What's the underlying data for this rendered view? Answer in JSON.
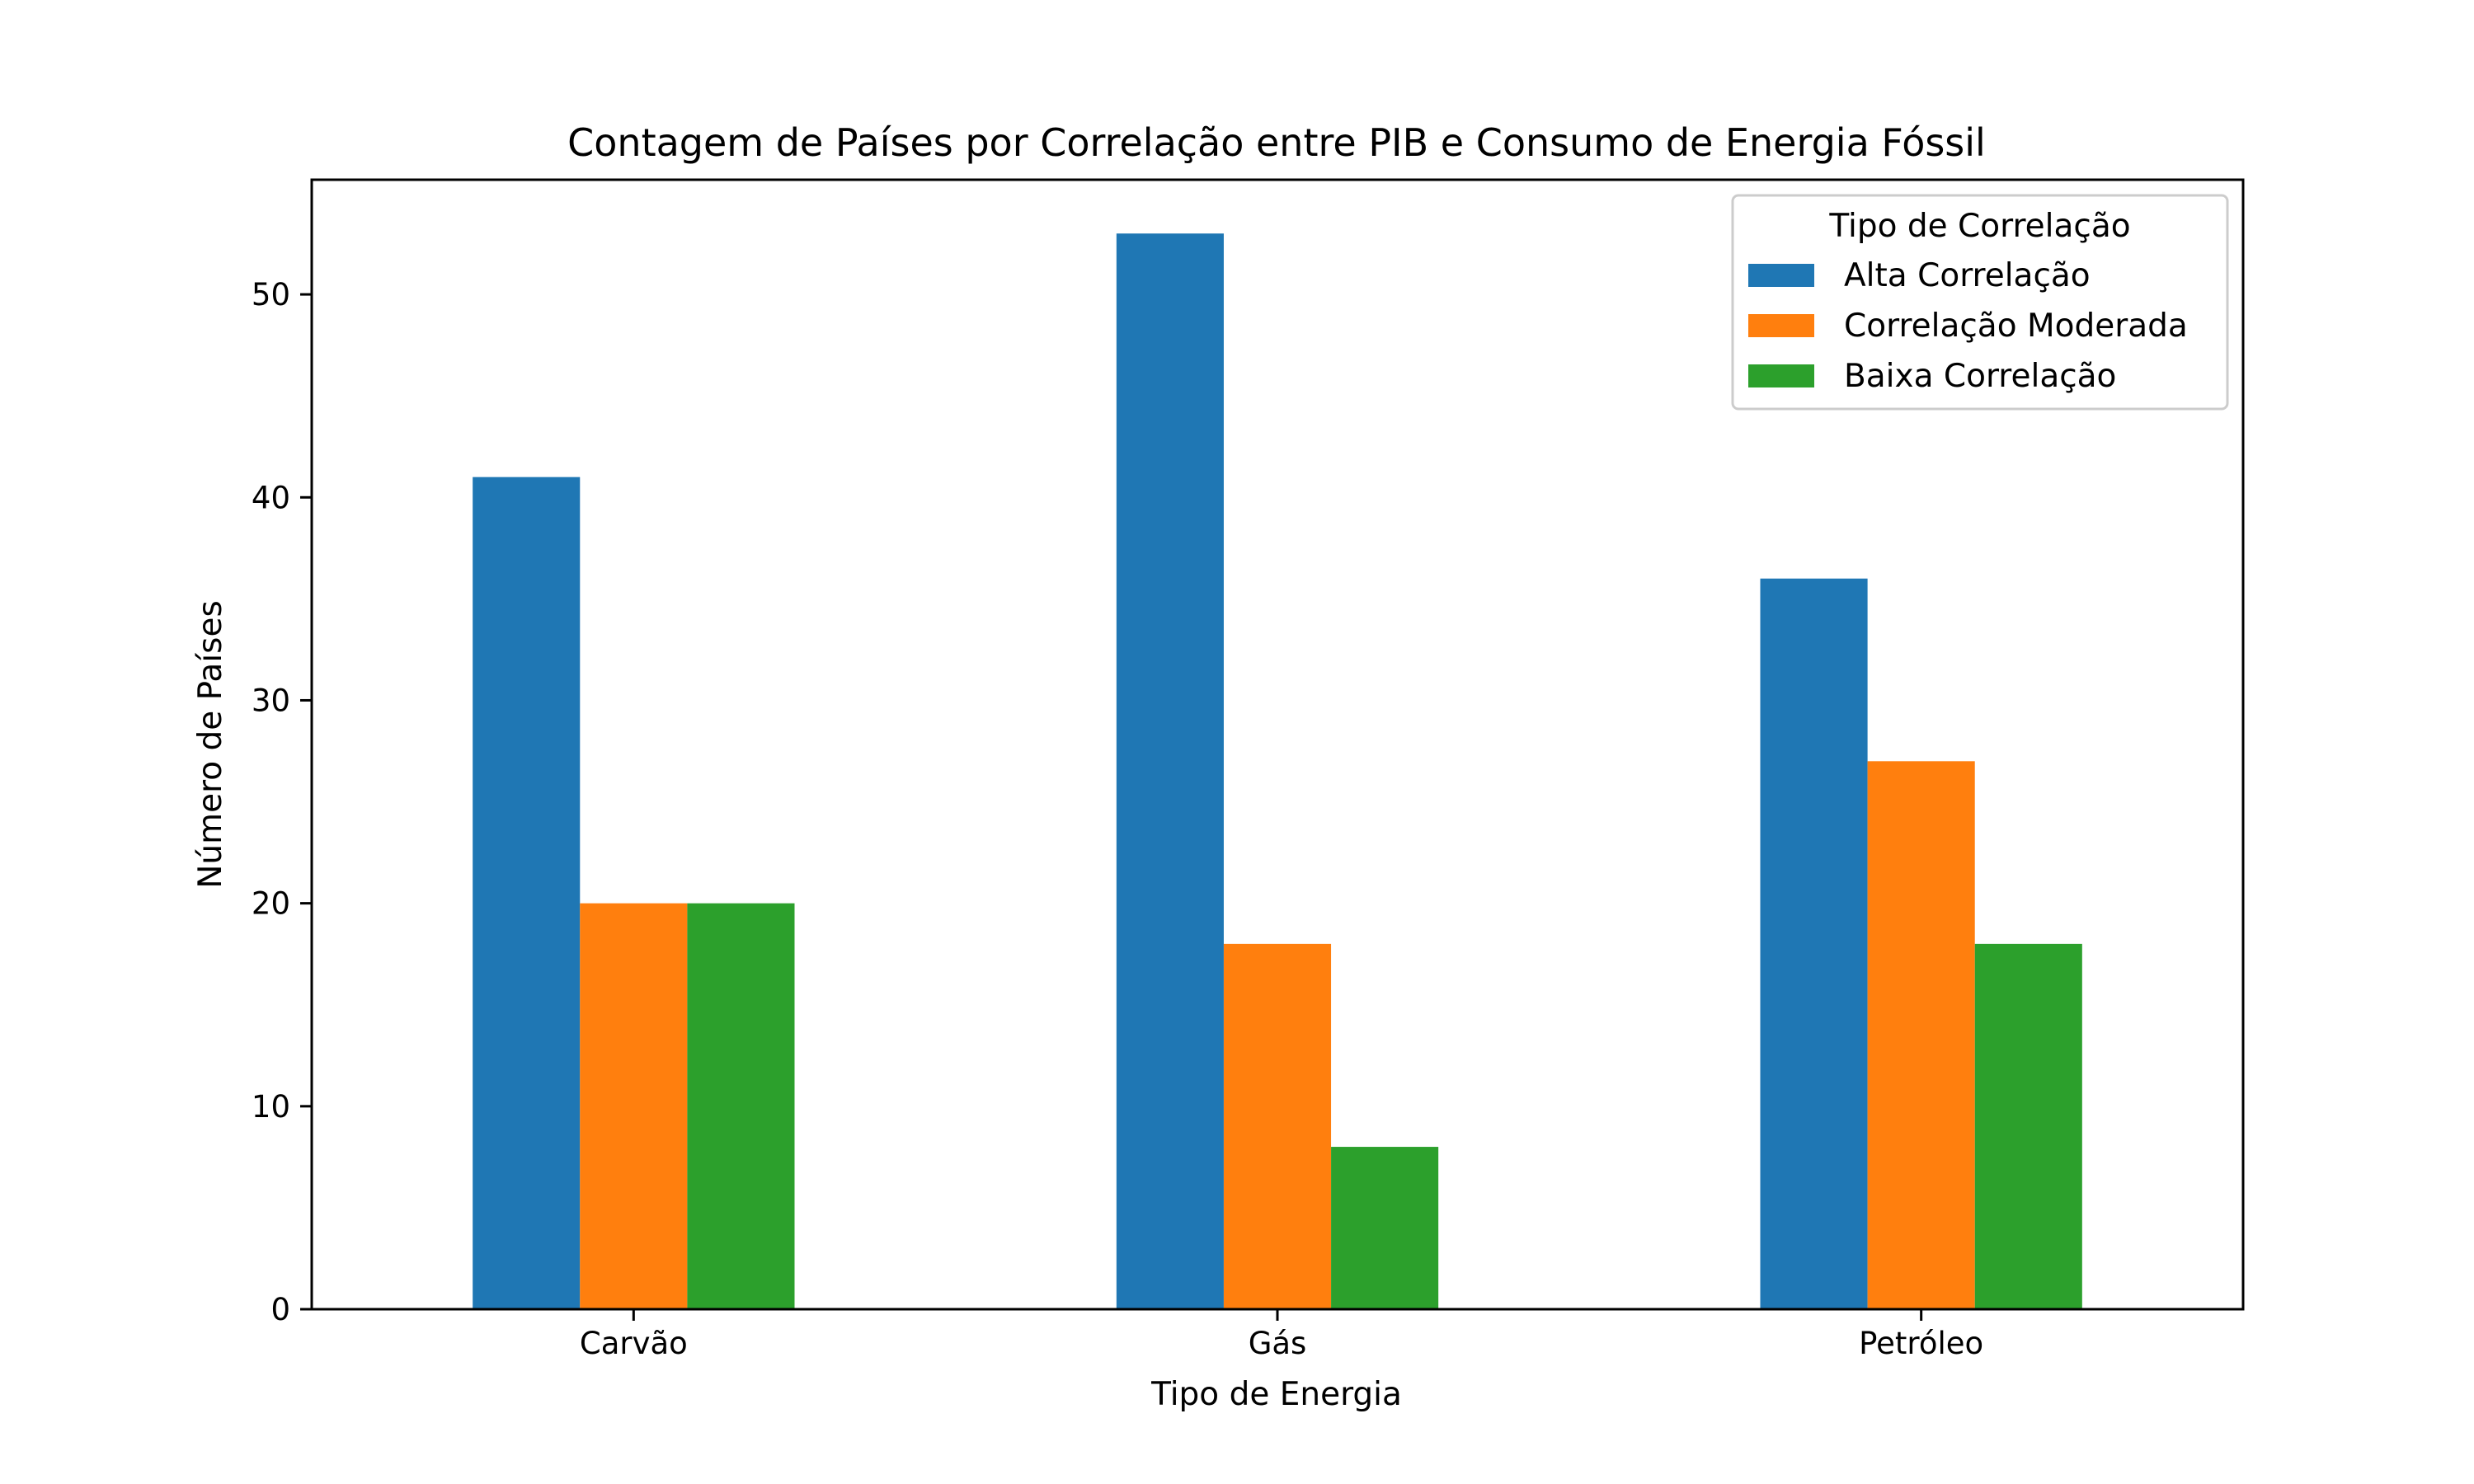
{
  "chart_data": {
    "type": "bar",
    "title": "Contagem de Países por Correlação entre PIB e Consumo de Energia Fóssil",
    "xlabel": "Tipo de Energia",
    "ylabel": "Número de Países",
    "categories": [
      "Carvão",
      "Gás",
      "Petróleo"
    ],
    "series": [
      {
        "name": "Alta Correlação",
        "color": "#1f77b4",
        "values": [
          41,
          53,
          36
        ]
      },
      {
        "name": "Correlação Moderada",
        "color": "#ff7f0e",
        "values": [
          20,
          18,
          27
        ]
      },
      {
        "name": "Baixa Correlação",
        "color": "#2ca02c",
        "values": [
          20,
          8,
          18
        ]
      }
    ],
    "ylim": [
      0,
      55.65
    ],
    "yticks": [
      0,
      10,
      20,
      30,
      40,
      50
    ],
    "legend": {
      "title": "Tipo de Correlação",
      "placement": "top-right"
    },
    "grid": false
  }
}
